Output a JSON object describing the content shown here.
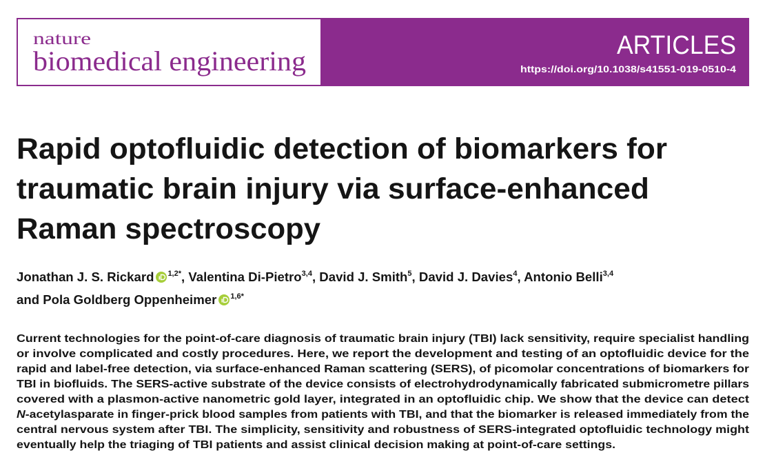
{
  "header": {
    "journal_small": "nature",
    "journal_large": "biomedical engineering",
    "section": "ARTICLES",
    "doi": "https://doi.org/10.1038/s41551-019-0510-4"
  },
  "title": {
    "lines": [
      "Rapid optofluidic detection of biomarkers for",
      "traumatic brain injury via surface-enhanced",
      "Raman spectroscopy"
    ]
  },
  "authors": {
    "separator": ",",
    "connector": "and",
    "list": [
      {
        "name": "Jonathan J. S. Rickard",
        "sup": "1,2*"
      },
      {
        "name": "Valentina Di-Pietro",
        "sup": "3,4"
      },
      {
        "name": "David J. Smith",
        "sup": "5"
      },
      {
        "name": "David J. Davies",
        "sup": "4"
      },
      {
        "name": "Antonio Belli",
        "sup": "3,4"
      },
      {
        "name": "Pola Goldberg Oppenheimer",
        "sup": "1,6*"
      }
    ]
  },
  "abstract": {
    "lines": [
      "Current technologies for the point-of-care diagnosis of traumatic brain injury (TBI) lack sensitivity, require specialist handling",
      "or involve complicated and costly procedures. Here, we report the development and testing of an optofluidic device for the",
      "rapid and label-free detection, via surface-enhanced Raman scattering (SERS), of picomolar concentrations of biomarkers for",
      "TBI in biofluids. The SERS-active substrate of the device consists of electrohydrodynamically fabricated submicrometre pillars",
      "covered with a plasmon-active nanometric gold layer, integrated in an optofluidic chip. We show that the device can detect",
      {
        "italic": "N",
        "text": "-acetylasparate in finger-prick blood samples from patients with TBI, and that the biomarker is released immediately from the"
      },
      "central nervous system after TBI. The simplicity, sensitivity and robustness of SERS-integrated optofluidic technology might",
      "eventually help the triaging of TBI patients and assist clinical decision making at point-of-care settings."
    ]
  }
}
